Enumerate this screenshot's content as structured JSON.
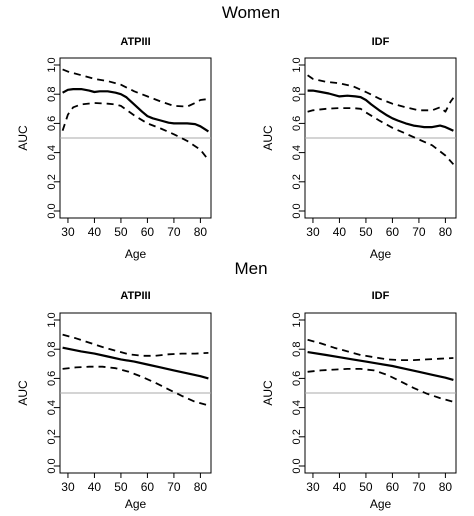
{
  "figure": {
    "sections": [
      {
        "key": "women",
        "title": "Women"
      },
      {
        "key": "men",
        "title": "Men"
      }
    ]
  },
  "style": {
    "line_color": "#000000",
    "reference_color": "#aaaaaa",
    "background": "#ffffff"
  },
  "chart_data": [
    {
      "type": "line",
      "group": "Women",
      "title": "ATPIII",
      "xlabel": "Age",
      "ylabel": "AUC",
      "xlim": [
        27,
        84
      ],
      "ylim": [
        0,
        1
      ],
      "xticks": [
        30,
        40,
        50,
        60,
        70,
        80
      ],
      "yticks": [
        "0.0",
        "0.2",
        "0.4",
        "0.6",
        "0.8",
        "1.0"
      ],
      "reference_line": 0.5,
      "series": [
        {
          "style": "solid",
          "x": [
            28,
            30,
            32,
            35,
            38,
            40,
            42,
            45,
            48,
            50,
            52,
            55,
            58,
            60,
            62,
            65,
            68,
            70,
            72,
            75,
            78,
            80,
            83
          ],
          "y": [
            0.81,
            0.83,
            0.835,
            0.835,
            0.825,
            0.815,
            0.82,
            0.82,
            0.81,
            0.8,
            0.78,
            0.73,
            0.68,
            0.65,
            0.635,
            0.62,
            0.605,
            0.6,
            0.6,
            0.6,
            0.595,
            0.58,
            0.545
          ]
        },
        {
          "style": "dashed",
          "x": [
            28,
            30,
            35,
            40,
            45,
            50,
            55,
            60,
            65,
            70,
            75,
            78,
            80,
            82
          ],
          "y": [
            0.97,
            0.955,
            0.93,
            0.905,
            0.89,
            0.865,
            0.82,
            0.785,
            0.75,
            0.72,
            0.715,
            0.74,
            0.76,
            0.765
          ]
        },
        {
          "style": "dashed",
          "x": [
            28,
            30,
            32,
            35,
            40,
            45,
            48,
            50,
            55,
            60,
            65,
            70,
            75,
            80,
            83
          ],
          "y": [
            0.55,
            0.66,
            0.71,
            0.73,
            0.74,
            0.735,
            0.73,
            0.72,
            0.655,
            0.6,
            0.565,
            0.525,
            0.48,
            0.42,
            0.35
          ]
        }
      ]
    },
    {
      "type": "line",
      "group": "Women",
      "title": "IDF",
      "xlabel": "Age",
      "ylabel": "AUC",
      "xlim": [
        27,
        84
      ],
      "ylim": [
        0,
        1
      ],
      "xticks": [
        30,
        40,
        50,
        60,
        70,
        80
      ],
      "yticks": [
        "0.0",
        "0.2",
        "0.4",
        "0.6",
        "0.8",
        "1.0"
      ],
      "reference_line": 0.5,
      "series": [
        {
          "style": "solid",
          "x": [
            28,
            30,
            33,
            36,
            40,
            43,
            46,
            48,
            50,
            52,
            55,
            58,
            60,
            62,
            65,
            68,
            70,
            72,
            75,
            78,
            80,
            83
          ],
          "y": [
            0.825,
            0.825,
            0.815,
            0.805,
            0.785,
            0.79,
            0.785,
            0.78,
            0.76,
            0.73,
            0.69,
            0.655,
            0.635,
            0.62,
            0.6,
            0.585,
            0.58,
            0.575,
            0.575,
            0.585,
            0.575,
            0.55
          ]
        },
        {
          "style": "dashed",
          "x": [
            28,
            30,
            35,
            40,
            45,
            50,
            55,
            60,
            65,
            70,
            75,
            78,
            80,
            82,
            83
          ],
          "y": [
            0.93,
            0.905,
            0.885,
            0.875,
            0.855,
            0.815,
            0.77,
            0.735,
            0.71,
            0.69,
            0.69,
            0.71,
            0.68,
            0.75,
            0.775
          ]
        },
        {
          "style": "dashed",
          "x": [
            28,
            30,
            35,
            40,
            45,
            48,
            50,
            55,
            60,
            65,
            70,
            75,
            80,
            83
          ],
          "y": [
            0.68,
            0.69,
            0.7,
            0.705,
            0.705,
            0.7,
            0.675,
            0.62,
            0.57,
            0.53,
            0.49,
            0.45,
            0.38,
            0.32
          ]
        }
      ]
    },
    {
      "type": "line",
      "group": "Men",
      "title": "ATPIII",
      "xlabel": "Age",
      "ylabel": "AUC",
      "xlim": [
        27,
        84
      ],
      "ylim": [
        0,
        1
      ],
      "xticks": [
        30,
        40,
        50,
        60,
        70,
        80
      ],
      "yticks": [
        "0.0",
        "0.2",
        "0.4",
        "0.6",
        "0.8",
        "1.0"
      ],
      "reference_line": 0.5,
      "series": [
        {
          "style": "solid",
          "x": [
            28,
            35,
            40,
            45,
            50,
            55,
            60,
            65,
            70,
            75,
            80,
            83
          ],
          "y": [
            0.81,
            0.785,
            0.77,
            0.75,
            0.73,
            0.715,
            0.695,
            0.675,
            0.655,
            0.635,
            0.615,
            0.6
          ]
        },
        {
          "style": "dashed",
          "x": [
            28,
            33,
            38,
            43,
            48,
            53,
            58,
            63,
            68,
            73,
            78,
            83
          ],
          "y": [
            0.9,
            0.875,
            0.845,
            0.815,
            0.79,
            0.765,
            0.755,
            0.755,
            0.765,
            0.77,
            0.77,
            0.775
          ]
        },
        {
          "style": "dashed",
          "x": [
            28,
            33,
            38,
            43,
            48,
            53,
            58,
            63,
            68,
            73,
            78,
            83
          ],
          "y": [
            0.665,
            0.675,
            0.68,
            0.68,
            0.67,
            0.645,
            0.61,
            0.57,
            0.525,
            0.48,
            0.44,
            0.415
          ]
        }
      ]
    },
    {
      "type": "line",
      "group": "Men",
      "title": "IDF",
      "xlabel": "Age",
      "ylabel": "AUC",
      "xlim": [
        27,
        84
      ],
      "ylim": [
        0,
        1
      ],
      "xticks": [
        30,
        40,
        50,
        60,
        70,
        80
      ],
      "yticks": [
        "0.0",
        "0.2",
        "0.4",
        "0.6",
        "0.8",
        "1.0"
      ],
      "reference_line": 0.5,
      "series": [
        {
          "style": "solid",
          "x": [
            28,
            35,
            40,
            45,
            50,
            55,
            60,
            65,
            70,
            75,
            80,
            83
          ],
          "y": [
            0.78,
            0.76,
            0.745,
            0.73,
            0.715,
            0.7,
            0.685,
            0.665,
            0.645,
            0.625,
            0.605,
            0.59
          ]
        },
        {
          "style": "dashed",
          "x": [
            28,
            33,
            38,
            43,
            48,
            53,
            58,
            63,
            68,
            73,
            78,
            83
          ],
          "y": [
            0.865,
            0.84,
            0.81,
            0.785,
            0.76,
            0.745,
            0.73,
            0.725,
            0.725,
            0.73,
            0.735,
            0.74
          ]
        },
        {
          "style": "dashed",
          "x": [
            28,
            33,
            38,
            43,
            48,
            53,
            58,
            63,
            68,
            73,
            78,
            83
          ],
          "y": [
            0.645,
            0.655,
            0.66,
            0.665,
            0.665,
            0.655,
            0.625,
            0.58,
            0.535,
            0.495,
            0.465,
            0.44
          ]
        }
      ]
    }
  ]
}
